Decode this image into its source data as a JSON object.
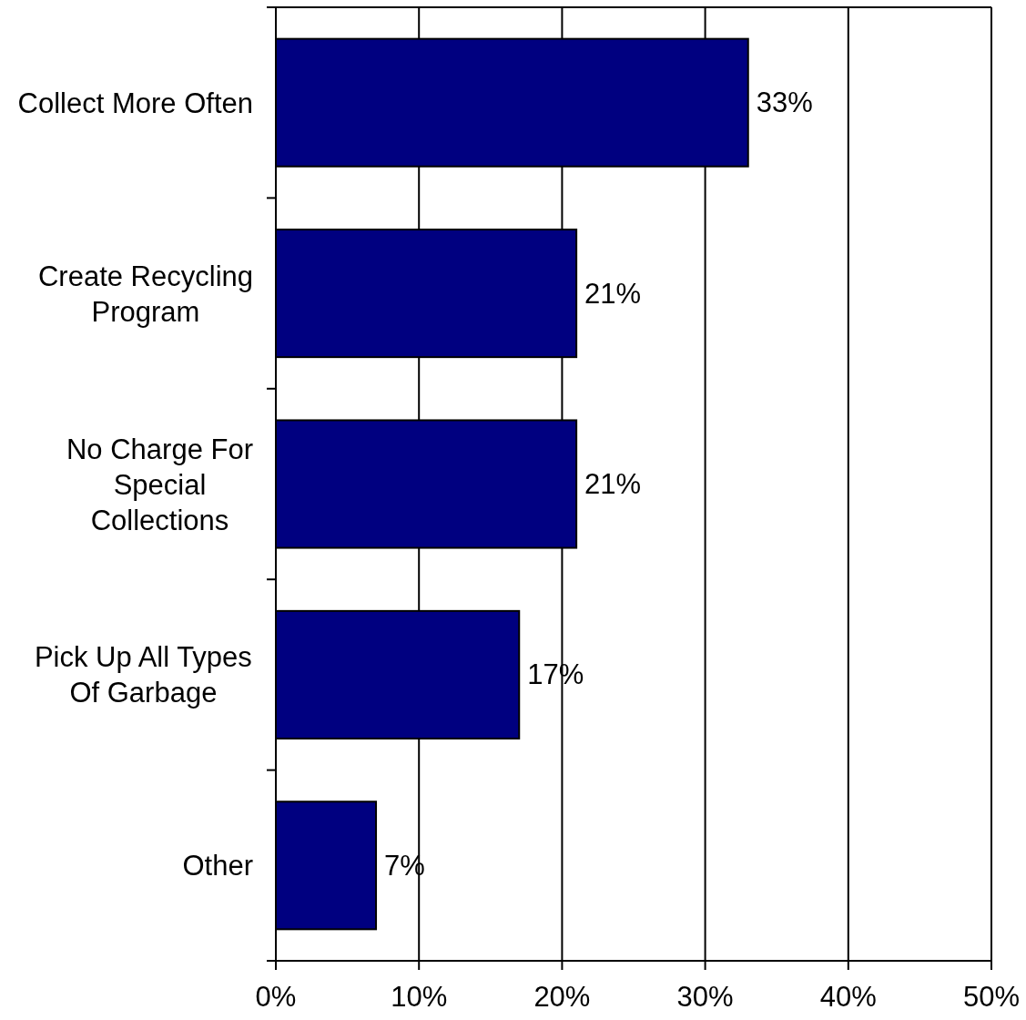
{
  "chart_data": {
    "type": "bar",
    "orientation": "horizontal",
    "categories": [
      "Collect More Often",
      "Create Recycling\nProgram",
      "No Charge For\nSpecial\nCollections",
      "Pick Up All Types\nOf Garbage",
      "Other"
    ],
    "values": [
      33,
      21,
      21,
      17,
      7
    ],
    "color": "#000080",
    "value_labels": [
      "33%",
      "21%",
      "21%",
      "17%",
      "7%"
    ],
    "xlim": [
      0,
      50
    ],
    "xticks": [
      {
        "value": 0,
        "label": "0%"
      },
      {
        "value": 10,
        "label": "10%"
      },
      {
        "value": 20,
        "label": "20%"
      },
      {
        "value": 30,
        "label": "30%"
      },
      {
        "value": 40,
        "label": "40%"
      },
      {
        "value": 50,
        "label": "50%"
      }
    ],
    "grid": "x"
  }
}
